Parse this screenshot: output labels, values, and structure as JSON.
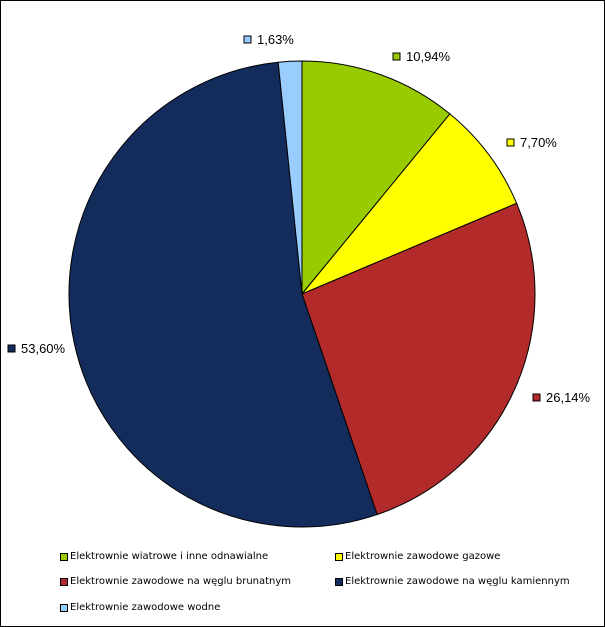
{
  "chart_data": {
    "type": "pie",
    "categories": [
      "Elektrownie wiatrowe i inne odnawialne",
      "Elektrownie zawodowe gazowe",
      "Elektrownie zawodowe na węglu brunatnym",
      "Elektrownie zawodowe na węglu kamiennym",
      "Elektrownie zawodowe wodne"
    ],
    "values": [
      10.94,
      7.7,
      26.14,
      53.6,
      1.63
    ],
    "labels": [
      "10,94%",
      "7,70%",
      "26,14%",
      "53,60%",
      "1,63%"
    ],
    "colors": [
      "#99cc00",
      "#ffff00",
      "#b22a2a",
      "#142c5c",
      "#99ccff"
    ],
    "start_angle_deg": 0,
    "direction": "clockwise",
    "legend_position": "bottom"
  }
}
